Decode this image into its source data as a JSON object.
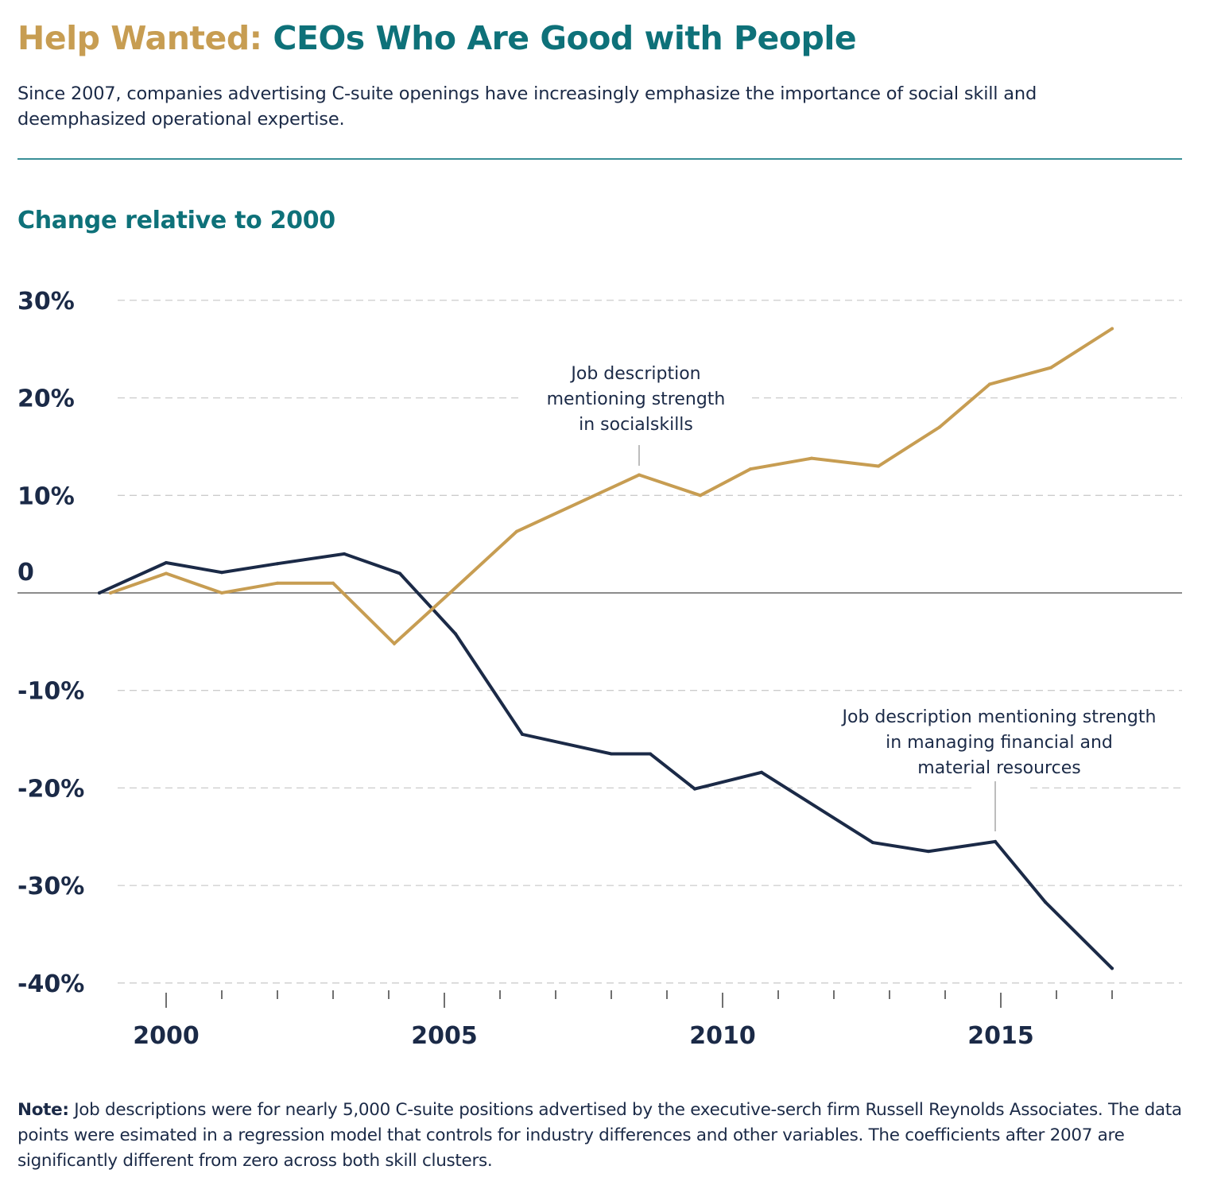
{
  "header": {
    "title_lead": "Help Wanted:",
    "title_rest": "CEOs Who Are Good with People",
    "subtitle": "Since 2007, companies advertising C-suite openings have increasingly emphasize the importance of social skill and deemphasized operational expertise."
  },
  "colors": {
    "title_lead": "#c79d52",
    "title_rest": "#0e7179",
    "social_series": "#c79d52",
    "financial_series": "#1b2a47",
    "gridline": "#cccccc",
    "zero_line": "#666666"
  },
  "chart_data": {
    "type": "line",
    "title": "Change relative to 2000",
    "xlabel": "",
    "ylabel": "Change relative to 2000",
    "xlim": [
      1998.3,
      2018.2
    ],
    "ylim": [
      -40,
      30
    ],
    "y_ticks": [
      30,
      20,
      10,
      0,
      -10,
      -20,
      -30,
      -40
    ],
    "y_tick_labels": [
      "30%",
      "20%",
      "10%",
      "0",
      "-10%",
      "-20%",
      "-30%",
      "-40%"
    ],
    "x_major_ticks": [
      2000,
      2005,
      2010,
      2015
    ],
    "x_tick_labels": [
      "2000",
      "2005",
      "2010",
      "2015"
    ],
    "x_minor_ticks": [
      2001,
      2002,
      2003,
      2004,
      2006,
      2007,
      2008,
      2009,
      2011,
      2012,
      2013,
      2014,
      2016,
      2017
    ],
    "grid": true,
    "legend": "none (direct annotations)",
    "series": [
      {
        "name": "Job description mentioning strength in socialskills",
        "key": "social",
        "color": "#c79d52",
        "x": [
          1999.0,
          2000.0,
          2001.0,
          2002.0,
          2003.0,
          2004.1,
          2005.1,
          2006.3,
          2008.5,
          2009.6,
          2010.5,
          2011.6,
          2012.8,
          2013.9,
          2014.8,
          2015.9,
          2017.0
        ],
        "values": [
          0,
          2.0,
          0,
          1.0,
          1.0,
          -5.2,
          0,
          6.3,
          12.1,
          10.0,
          12.7,
          13.8,
          13.0,
          17.0,
          21.4,
          23.1,
          27.1
        ]
      },
      {
        "name": "Job description mentioning strength in managing financial and material resources",
        "key": "financial",
        "color": "#1b2a47",
        "x": [
          1998.8,
          2000.0,
          2001.0,
          2002.0,
          2003.2,
          2004.2,
          2005.2,
          2006.4,
          2008.0,
          2008.7,
          2009.5,
          2010.7,
          2012.7,
          2013.7,
          2014.9,
          2015.8,
          2017.0
        ],
        "values": [
          0,
          3.1,
          2.1,
          3.0,
          4.0,
          2.0,
          -4.2,
          -14.5,
          -16.5,
          -16.5,
          -20.1,
          -18.4,
          -25.6,
          -26.5,
          -25.5,
          -31.7,
          -38.5
        ]
      }
    ],
    "annotations": [
      {
        "series": "social",
        "lines": [
          "Job description",
          "mentioning strength",
          "in socialskills"
        ],
        "anchor_x": 2008.5,
        "anchor_value": 12.1
      },
      {
        "series": "financial",
        "lines": [
          "Job description mentioning strength",
          "in managing financial and",
          "material resources"
        ],
        "anchor_x": 2014.9,
        "anchor_value": -25.5
      }
    ]
  },
  "footer": {
    "note_label": "Note:",
    "note_text": " Job descriptions were for nearly 5,000 C-suite positions advertised by the executive-serch firm Russell Reynolds Associates. The data points were esimated in a regression model that controls for industry differences and other variables. The coefficients after 2007 are significantly different from zero across both skill clusters."
  }
}
